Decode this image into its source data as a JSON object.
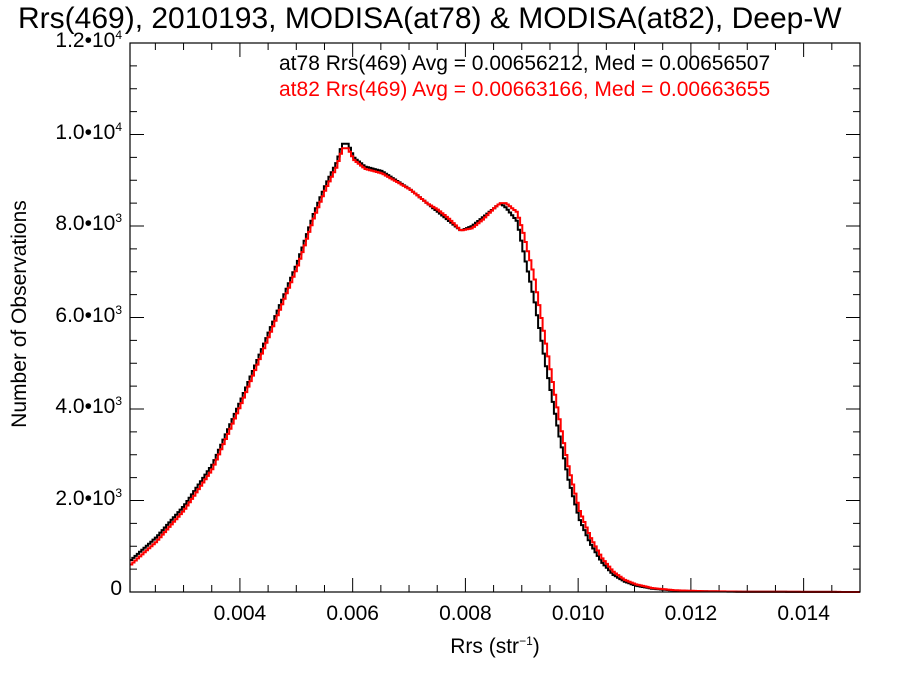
{
  "chart_data": {
    "type": "line",
    "title": "Rrs(469), 2010193, MODISA(at78) & MODISA(at82), Deep-W",
    "xlabel": "Rrs (str",
    "xlabel_sup": "−1",
    "xlabel_close": ")",
    "ylabel": "Number of Observations",
    "xlim": [
      0.00205,
      0.015
    ],
    "ylim": [
      0,
      12000
    ],
    "x_ticks": [
      {
        "value": 0.004,
        "label": "0.004"
      },
      {
        "value": 0.006,
        "label": "0.006"
      },
      {
        "value": 0.008,
        "label": "0.008"
      },
      {
        "value": 0.01,
        "label": "0.010"
      },
      {
        "value": 0.012,
        "label": "0.012"
      },
      {
        "value": 0.014,
        "label": "0.014"
      }
    ],
    "y_ticks": [
      {
        "value": 0,
        "label": "0",
        "exp": ""
      },
      {
        "value": 2000,
        "label": "2.0•10",
        "exp": "3"
      },
      {
        "value": 4000,
        "label": "4.0•10",
        "exp": "3"
      },
      {
        "value": 6000,
        "label": "6.0•10",
        "exp": "3"
      },
      {
        "value": 8000,
        "label": "8.0•10",
        "exp": "3"
      },
      {
        "value": 10000,
        "label": "1.0•10",
        "exp": "4"
      },
      {
        "value": 12000,
        "label": "1.2•10",
        "exp": "4"
      }
    ],
    "annotations": [
      {
        "text": "at78 Rrs(469) Avg = 0.00656212, Med = 0.00656507",
        "color": "#000000"
      },
      {
        "text": "at82 Rrs(469) Avg = 0.00663166, Med = 0.00663655",
        "color": "#ff0000"
      }
    ],
    "series": [
      {
        "color": "#000000",
        "x": [
          0.00205,
          0.0025,
          0.003,
          0.0035,
          0.004,
          0.0045,
          0.005,
          0.0053,
          0.0055,
          0.0057,
          0.0058,
          0.0059,
          0.006,
          0.0062,
          0.0065,
          0.007,
          0.0073,
          0.0075,
          0.0077,
          0.0079,
          0.0081,
          0.0083,
          0.0085,
          0.0086,
          0.0087,
          0.0089,
          0.009,
          0.0092,
          0.0094,
          0.0096,
          0.0098,
          0.01,
          0.0102,
          0.0104,
          0.0106,
          0.0108,
          0.011,
          0.0113,
          0.0117,
          0.0122,
          0.013,
          0.015
        ],
        "y": [
          700,
          1200,
          1900,
          2800,
          4200,
          5700,
          7200,
          8300,
          8900,
          9400,
          9800,
          9800,
          9500,
          9300,
          9200,
          8800,
          8500,
          8300,
          8100,
          7900,
          8000,
          8200,
          8400,
          8500,
          8400,
          8100,
          7500,
          6400,
          5000,
          3700,
          2500,
          1600,
          1050,
          650,
          380,
          230,
          140,
          70,
          30,
          15,
          5,
          0
        ]
      },
      {
        "color": "#ff0000",
        "x": [
          0.00205,
          0.0025,
          0.003,
          0.0035,
          0.004,
          0.0045,
          0.005,
          0.0053,
          0.0055,
          0.0057,
          0.0058,
          0.0059,
          0.006,
          0.0062,
          0.0065,
          0.007,
          0.0073,
          0.0075,
          0.0077,
          0.0079,
          0.0081,
          0.0083,
          0.0085,
          0.0086,
          0.0087,
          0.0089,
          0.009,
          0.0092,
          0.0094,
          0.0096,
          0.0098,
          0.01,
          0.0102,
          0.0104,
          0.0106,
          0.0108,
          0.011,
          0.0113,
          0.0117,
          0.0122,
          0.013,
          0.015
        ],
        "y": [
          600,
          1100,
          1800,
          2700,
          4100,
          5600,
          7100,
          8200,
          8800,
          9300,
          9700,
          9700,
          9450,
          9250,
          9150,
          8800,
          8500,
          8350,
          8150,
          7900,
          7950,
          8150,
          8400,
          8500,
          8500,
          8300,
          7900,
          6900,
          5500,
          4100,
          2800,
          1800,
          1200,
          750,
          450,
          270,
          170,
          85,
          38,
          18,
          6,
          0
        ]
      }
    ]
  }
}
